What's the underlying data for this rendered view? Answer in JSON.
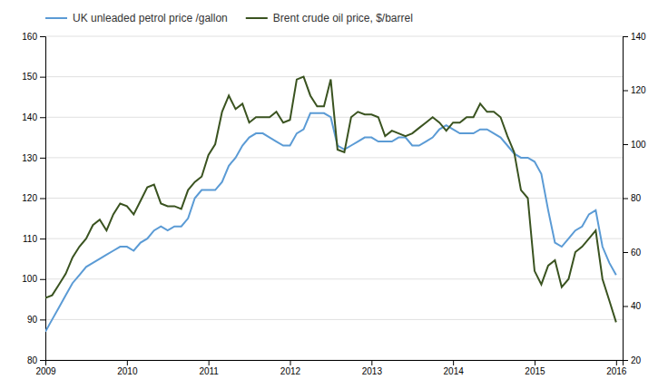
{
  "chart_data": {
    "type": "line",
    "x": [
      2009.0,
      2009.083,
      2009.167,
      2009.25,
      2009.333,
      2009.417,
      2009.5,
      2009.583,
      2009.667,
      2009.75,
      2009.833,
      2009.917,
      2010.0,
      2010.083,
      2010.167,
      2010.25,
      2010.333,
      2010.417,
      2010.5,
      2010.583,
      2010.667,
      2010.75,
      2010.833,
      2010.917,
      2011.0,
      2011.083,
      2011.167,
      2011.25,
      2011.333,
      2011.417,
      2011.5,
      2011.583,
      2011.667,
      2011.75,
      2011.833,
      2011.917,
      2012.0,
      2012.083,
      2012.167,
      2012.25,
      2012.333,
      2012.417,
      2012.5,
      2012.583,
      2012.667,
      2012.75,
      2012.833,
      2012.917,
      2013.0,
      2013.083,
      2013.167,
      2013.25,
      2013.333,
      2013.417,
      2013.5,
      2013.583,
      2013.667,
      2013.75,
      2013.833,
      2013.917,
      2014.0,
      2014.083,
      2014.167,
      2014.25,
      2014.333,
      2014.417,
      2014.5,
      2014.583,
      2014.667,
      2014.75,
      2014.833,
      2014.917,
      2015.0,
      2015.083,
      2015.167,
      2015.25,
      2015.333,
      2015.417,
      2015.5,
      2015.583,
      2015.667,
      2015.75,
      2015.833,
      2015.917,
      2016.0
    ],
    "series": [
      {
        "name": "UK unleaded petrol price /gallon",
        "color": "#5B9BD5",
        "axis": "y",
        "values": [
          87,
          90,
          93,
          96,
          99,
          101,
          103,
          104,
          105,
          106,
          107,
          108,
          108,
          107,
          109,
          110,
          112,
          113,
          112,
          113,
          113,
          115,
          120,
          122,
          122,
          122,
          124,
          128,
          130,
          133,
          135,
          136,
          136,
          135,
          134,
          133,
          133,
          136,
          137,
          141,
          141,
          141,
          140,
          133,
          132,
          133,
          134,
          135,
          135,
          134,
          134,
          134,
          135,
          135,
          133,
          133,
          134,
          135,
          137,
          138,
          137,
          136,
          136,
          136,
          137,
          137,
          136,
          135,
          133,
          131,
          130,
          130,
          129,
          126,
          117,
          109,
          108,
          110,
          112,
          113,
          116,
          117,
          108,
          104,
          101
        ]
      },
      {
        "name": "Brent crude oil price, $/barrel",
        "color": "#3A5320",
        "axis": "y2",
        "values": [
          43,
          44,
          48,
          52,
          58,
          62,
          65,
          70,
          72,
          68,
          74,
          78,
          77,
          74,
          79,
          84,
          85,
          78,
          77,
          77,
          76,
          83,
          86,
          88,
          96,
          100,
          112,
          118,
          113,
          115,
          108,
          110,
          110,
          110,
          112,
          108,
          109,
          124,
          125,
          118,
          114,
          114,
          124,
          98,
          97,
          110,
          112,
          111,
          111,
          110,
          103,
          105,
          104,
          103,
          104,
          106,
          108,
          110,
          108,
          105,
          108,
          108,
          110,
          110,
          115,
          112,
          112,
          110,
          103,
          97,
          83,
          80,
          53,
          48,
          55,
          57,
          47,
          50,
          60,
          62,
          65,
          68,
          50,
          42,
          34
        ]
      }
    ],
    "xlim": [
      2009,
      2016.08
    ],
    "xticks": [
      2009,
      2010,
      2011,
      2012,
      2013,
      2014,
      2015,
      2016
    ],
    "ylim": [
      80,
      160
    ],
    "yticks": [
      80,
      90,
      100,
      110,
      120,
      130,
      140,
      150,
      160
    ],
    "y2lim": [
      20,
      140
    ],
    "y2ticks": [
      20,
      40,
      60,
      80,
      100,
      120,
      140
    ],
    "grid": true,
    "legend": "top-left"
  }
}
